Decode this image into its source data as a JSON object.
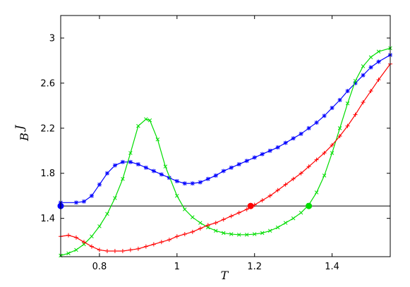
{
  "chart_data": {
    "type": "line",
    "title": "",
    "xlabel": "T",
    "ylabel": "B",
    "ylabel_superscript": "J",
    "xlim": [
      0.7,
      1.55
    ],
    "ylim": [
      1.06,
      3.2
    ],
    "x_ticks": [
      0.8,
      1,
      1.2,
      1.4
    ],
    "x_tick_labels": [
      "0.8",
      "1",
      "1.2",
      "1.4"
    ],
    "y_ticks": [
      1.4,
      1.8,
      2.2,
      2.6,
      3.0
    ],
    "y_tick_labels": [
      "1.4",
      "1.8",
      "2.2",
      "2.6",
      "3"
    ],
    "grid": false,
    "legend": "none",
    "reference_line": {
      "y": 1.51,
      "color": "#000000"
    },
    "series": [
      {
        "color": "#0000ff",
        "marker": "asterisk",
        "x": [
          0.7,
          0.74,
          0.76,
          0.78,
          0.8,
          0.82,
          0.84,
          0.86,
          0.88,
          0.9,
          0.92,
          0.94,
          0.96,
          0.98,
          1.0,
          1.02,
          1.04,
          1.06,
          1.08,
          1.1,
          1.12,
          1.14,
          1.16,
          1.18,
          1.2,
          1.22,
          1.24,
          1.26,
          1.28,
          1.3,
          1.32,
          1.34,
          1.36,
          1.38,
          1.4,
          1.42,
          1.44,
          1.46,
          1.48,
          1.5,
          1.52,
          1.55
        ],
        "y": [
          1.54,
          1.54,
          1.55,
          1.6,
          1.7,
          1.8,
          1.87,
          1.9,
          1.9,
          1.88,
          1.85,
          1.82,
          1.79,
          1.76,
          1.73,
          1.71,
          1.71,
          1.72,
          1.75,
          1.78,
          1.82,
          1.85,
          1.88,
          1.91,
          1.94,
          1.97,
          2.0,
          2.03,
          2.07,
          2.11,
          2.15,
          2.2,
          2.25,
          2.31,
          2.38,
          2.45,
          2.53,
          2.6,
          2.67,
          2.74,
          2.79,
          2.85
        ]
      },
      {
        "color": "#00dd00",
        "marker": "x",
        "x": [
          0.7,
          0.72,
          0.74,
          0.76,
          0.78,
          0.8,
          0.82,
          0.84,
          0.86,
          0.88,
          0.9,
          0.92,
          0.93,
          0.95,
          0.97,
          1.0,
          1.02,
          1.04,
          1.06,
          1.08,
          1.1,
          1.12,
          1.14,
          1.16,
          1.18,
          1.2,
          1.22,
          1.24,
          1.26,
          1.28,
          1.3,
          1.32,
          1.34,
          1.36,
          1.38,
          1.4,
          1.42,
          1.44,
          1.46,
          1.48,
          1.5,
          1.52,
          1.55
        ],
        "y": [
          1.07,
          1.09,
          1.12,
          1.17,
          1.24,
          1.33,
          1.44,
          1.58,
          1.75,
          1.98,
          2.22,
          2.28,
          2.27,
          2.1,
          1.86,
          1.6,
          1.48,
          1.41,
          1.36,
          1.32,
          1.29,
          1.27,
          1.26,
          1.255,
          1.255,
          1.26,
          1.27,
          1.29,
          1.32,
          1.36,
          1.4,
          1.45,
          1.52,
          1.63,
          1.78,
          1.98,
          2.2,
          2.42,
          2.62,
          2.75,
          2.83,
          2.88,
          2.91
        ]
      },
      {
        "color": "#ff0000",
        "marker": "plus",
        "x": [
          0.7,
          0.72,
          0.74,
          0.76,
          0.78,
          0.8,
          0.82,
          0.84,
          0.86,
          0.88,
          0.9,
          0.92,
          0.94,
          0.96,
          0.98,
          1.0,
          1.02,
          1.04,
          1.06,
          1.08,
          1.1,
          1.12,
          1.14,
          1.16,
          1.18,
          1.2,
          1.22,
          1.24,
          1.26,
          1.28,
          1.3,
          1.32,
          1.34,
          1.36,
          1.38,
          1.4,
          1.42,
          1.44,
          1.46,
          1.48,
          1.5,
          1.52,
          1.55
        ],
        "y": [
          1.24,
          1.25,
          1.23,
          1.19,
          1.15,
          1.12,
          1.11,
          1.11,
          1.11,
          1.12,
          1.13,
          1.15,
          1.17,
          1.19,
          1.21,
          1.24,
          1.26,
          1.28,
          1.31,
          1.34,
          1.36,
          1.39,
          1.42,
          1.45,
          1.48,
          1.52,
          1.56,
          1.6,
          1.65,
          1.7,
          1.75,
          1.8,
          1.86,
          1.92,
          1.98,
          2.05,
          2.13,
          2.22,
          2.32,
          2.43,
          2.53,
          2.63,
          2.77
        ]
      }
    ],
    "highlight_points": [
      {
        "x": 0.7,
        "y": 1.51,
        "color": "#0000ff"
      },
      {
        "x": 1.19,
        "y": 1.51,
        "color": "#ff0000"
      },
      {
        "x": 1.34,
        "y": 1.51,
        "color": "#00dd00"
      }
    ]
  }
}
